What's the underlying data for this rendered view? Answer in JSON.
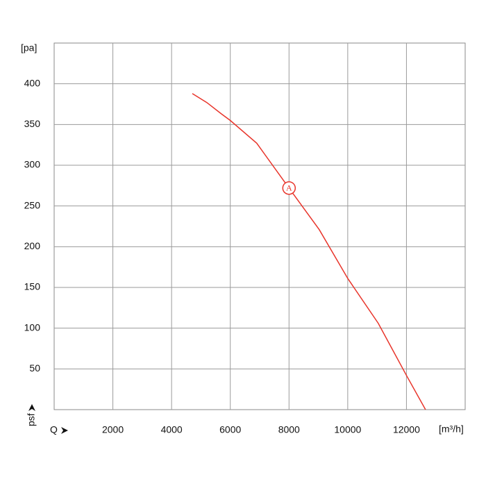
{
  "chart_data": {
    "type": "line",
    "x": [
      4705,
      5200,
      5700,
      6000,
      6900,
      8000,
      9030,
      10000,
      11040,
      12000,
      12650
    ],
    "series": [
      {
        "name": "A",
        "color": "#e8342a",
        "values": [
          388,
          377,
          363,
          355,
          327,
          272,
          221,
          161,
          106,
          42,
          0
        ]
      }
    ],
    "xlim": [
      0,
      14000
    ],
    "ylim": [
      0,
      450
    ],
    "xticks": [
      2000,
      4000,
      6000,
      8000,
      10000,
      12000
    ],
    "yticks": [
      50,
      100,
      150,
      200,
      250,
      300,
      350,
      400
    ],
    "xlabel": "[m³/h]",
    "ylabel": "[pa]",
    "x_symbol": "Q",
    "y_symbol": "psf",
    "annotations": [
      {
        "text": "A",
        "x": 8000,
        "y": 272
      }
    ],
    "grid": true
  }
}
